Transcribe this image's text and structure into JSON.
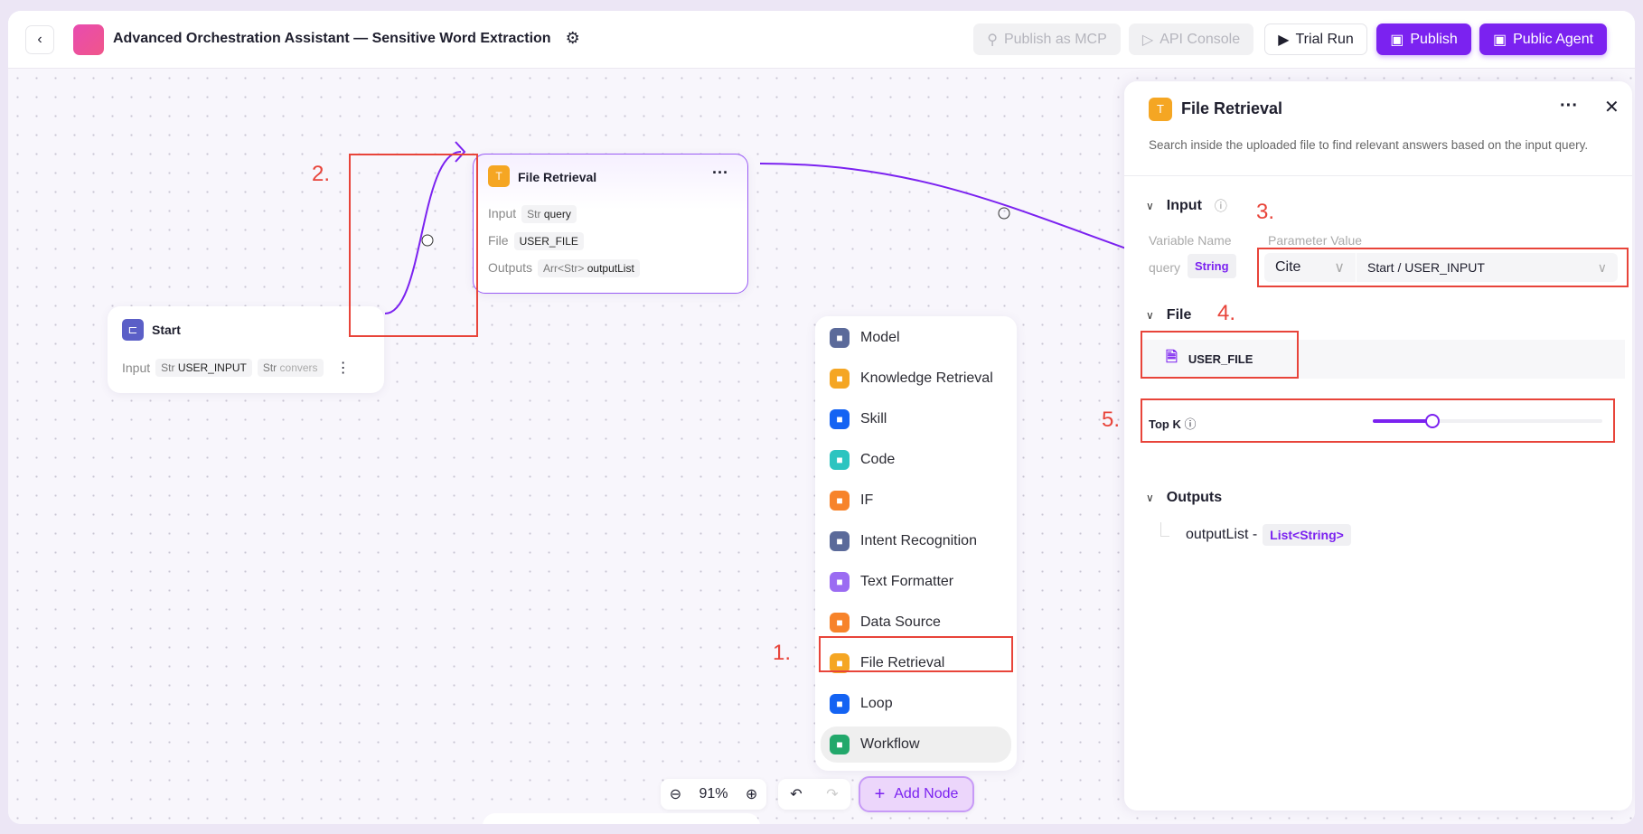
{
  "header": {
    "back_icon": "chevron-left-icon",
    "title": "Advanced Orchestration Assistant — Sensitive Word Extraction",
    "settings_icon": "gear-icon",
    "buttons": [
      {
        "label": "Publish as MCP",
        "icon": "plug-icon",
        "state": "disabled"
      },
      {
        "label": "API Console",
        "icon": "terminal-icon",
        "state": "disabled"
      },
      {
        "label": "Trial Run",
        "icon": "play-icon",
        "state": "normal"
      },
      {
        "label": "Publish",
        "icon": "save-icon",
        "state": "primary"
      },
      {
        "label": "Public Agent",
        "icon": "save-icon",
        "state": "primary"
      }
    ]
  },
  "colors": {
    "accent": "#7b22f0",
    "annotation": "#e8443a"
  },
  "nodes": {
    "start": {
      "title": "Start",
      "input_label": "Input",
      "tags": [
        {
          "type": "Str",
          "name": "USER_INPUT"
        },
        {
          "type": "Str",
          "name": "convers"
        }
      ]
    },
    "file_retrieval": {
      "title": "File Retrieval",
      "rows": [
        {
          "label": "Input",
          "type": "Str",
          "value": "query"
        },
        {
          "label": "File",
          "type": "",
          "value": "USER_FILE"
        },
        {
          "label": "Outputs",
          "type": "Arr<Str>",
          "value": "outputList"
        }
      ]
    }
  },
  "menu": {
    "items": [
      {
        "label": "Model",
        "icon": "model-icon",
        "color": "#5b6a9a"
      },
      {
        "label": "Knowledge Retrieval",
        "icon": "book-icon",
        "color": "#f5a623"
      },
      {
        "label": "Skill",
        "icon": "cube-icon",
        "color": "#1463f3"
      },
      {
        "label": "Code",
        "icon": "code-icon",
        "color": "#2cc4c0"
      },
      {
        "label": "IF",
        "icon": "branch-icon",
        "color": "#f7832a"
      },
      {
        "label": "Intent Recognition",
        "icon": "brain-icon",
        "color": "#5b6a9a"
      },
      {
        "label": "Text Formatter",
        "icon": "text-icon",
        "color": "#9b6cf2"
      },
      {
        "label": "Data Source",
        "icon": "database-icon",
        "color": "#f7832a"
      },
      {
        "label": "File Retrieval",
        "icon": "file-retrieval-icon",
        "color": "#f5a623"
      },
      {
        "label": "Loop",
        "icon": "loop-icon",
        "color": "#1463f3"
      },
      {
        "label": "Workflow",
        "icon": "workflow-icon",
        "color": "#22a86b"
      }
    ],
    "hovered": "Workflow"
  },
  "toolbar": {
    "zoom": "91%",
    "add_node": "Add Node"
  },
  "annotations": [
    "1.",
    "2.",
    "3.",
    "4.",
    "5."
  ],
  "panel": {
    "title": "File Retrieval",
    "description": "Search inside the uploaded file to find relevant answers based on the input query.",
    "input": {
      "heading": "Input",
      "col_name": "Variable Name",
      "col_value": "Parameter Value",
      "var": "query",
      "var_type": "String",
      "mode": "Cite",
      "value": "Start / USER_INPUT"
    },
    "file": {
      "heading": "File",
      "value": "USER_FILE"
    },
    "topk": {
      "label": "Top K",
      "fraction": 0.26
    },
    "outputs": {
      "heading": "Outputs",
      "name": "outputList -",
      "type": "List<String>"
    }
  }
}
